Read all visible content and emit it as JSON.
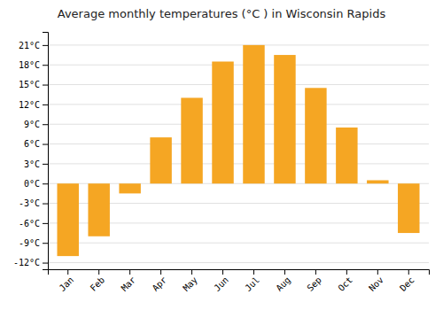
{
  "chart_data": {
    "type": "bar",
    "title": "Average monthly temperatures (°C ) in Wisconsin Rapids",
    "categories": [
      "Jan",
      "Feb",
      "Mar",
      "Apr",
      "May",
      "Jun",
      "Jul",
      "Aug",
      "Sep",
      "Oct",
      "Nov",
      "Dec"
    ],
    "values": [
      -11,
      -8,
      -1.5,
      7,
      13,
      18.5,
      21,
      19.5,
      14.5,
      8.5,
      0.5,
      -7.5
    ],
    "color": "#F5A623",
    "ylim": [
      -13,
      23
    ],
    "yticks": [
      {
        "value": -12,
        "label": "-12°C"
      },
      {
        "value": -9,
        "label": "-9°C"
      },
      {
        "value": -6,
        "label": "-6°C"
      },
      {
        "value": -3,
        "label": "-3°C"
      },
      {
        "value": 0,
        "label": "0°C"
      },
      {
        "value": 3,
        "label": "3°C"
      },
      {
        "value": 6,
        "label": "6°C"
      },
      {
        "value": 9,
        "label": "9°C"
      },
      {
        "value": 12,
        "label": "12°C"
      },
      {
        "value": 15,
        "label": "15°C"
      },
      {
        "value": 18,
        "label": "18°C"
      },
      {
        "value": 21,
        "label": "21°C"
      }
    ],
    "grid": true
  }
}
